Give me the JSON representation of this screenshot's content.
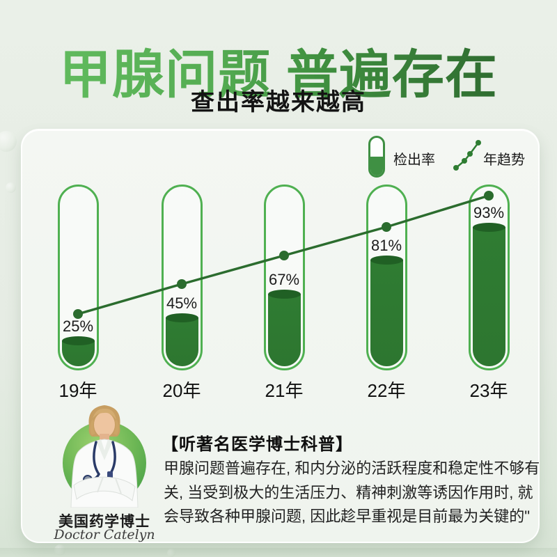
{
  "header": {
    "title": "甲腺问题 普遍存在",
    "subtitle": "查出率越来越高"
  },
  "legend": {
    "bar_label": "检出率",
    "line_label": "年趋势"
  },
  "chart_data": {
    "type": "bar",
    "subtype": "test-tube bars with overlaid trend line",
    "categories": [
      "19年",
      "20年",
      "21年",
      "22年",
      "23年"
    ],
    "series": [
      {
        "name": "检出率",
        "type": "bar",
        "unit": "%",
        "values": [
          25,
          45,
          67,
          81,
          93
        ]
      },
      {
        "name": "年趋势",
        "type": "line",
        "unit": "%",
        "values": [
          25,
          45,
          67,
          81,
          93
        ]
      }
    ],
    "value_labels": [
      "25%",
      "45%",
      "67%",
      "81%",
      "93%"
    ],
    "ylim": [
      0,
      100
    ],
    "grid": false,
    "legend_position": "top-right"
  },
  "expert": {
    "section_title": "【听著名医学博士科普】",
    "quote": "甲腺问题普遍存在, 和内分泌的活跃程度和稳定性不够有关, 当受到极大的生活压力、精神刺激等诱因作用时, 就会导致各种甲腺问题, 因此趁早重视是目前最为关键的\"",
    "name": "美国药学博士",
    "signature": "Doctor Catelyn"
  },
  "colors": {
    "title_gradient_start": "#65bf61",
    "title_gradient_end": "#2a612b",
    "tube_outline": "#4fb051",
    "tube_fill": "#2e7a31",
    "tube_fill_top": "#206024",
    "trend_line": "#2b6c2e",
    "capsule_green": "#3f9043",
    "page_bg": "#e6ece4",
    "card_bg": "#f2f6f0"
  }
}
